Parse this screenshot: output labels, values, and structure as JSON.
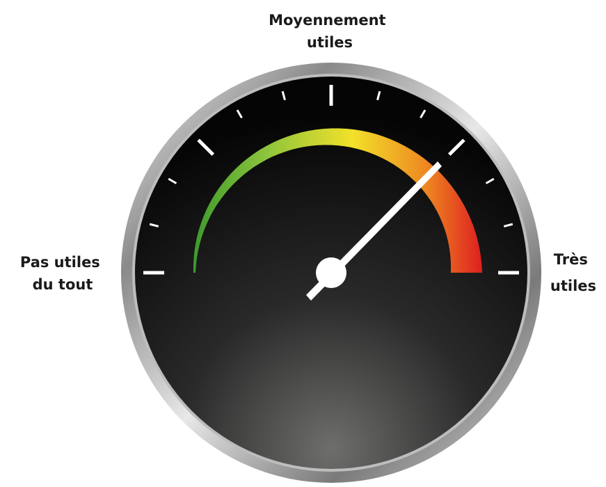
{
  "labels": {
    "top": [
      "Moyennement",
      "utiles"
    ],
    "left": [
      "Pas utiles",
      "du tout"
    ],
    "right": [
      "Très",
      "utiles"
    ]
  }
}
